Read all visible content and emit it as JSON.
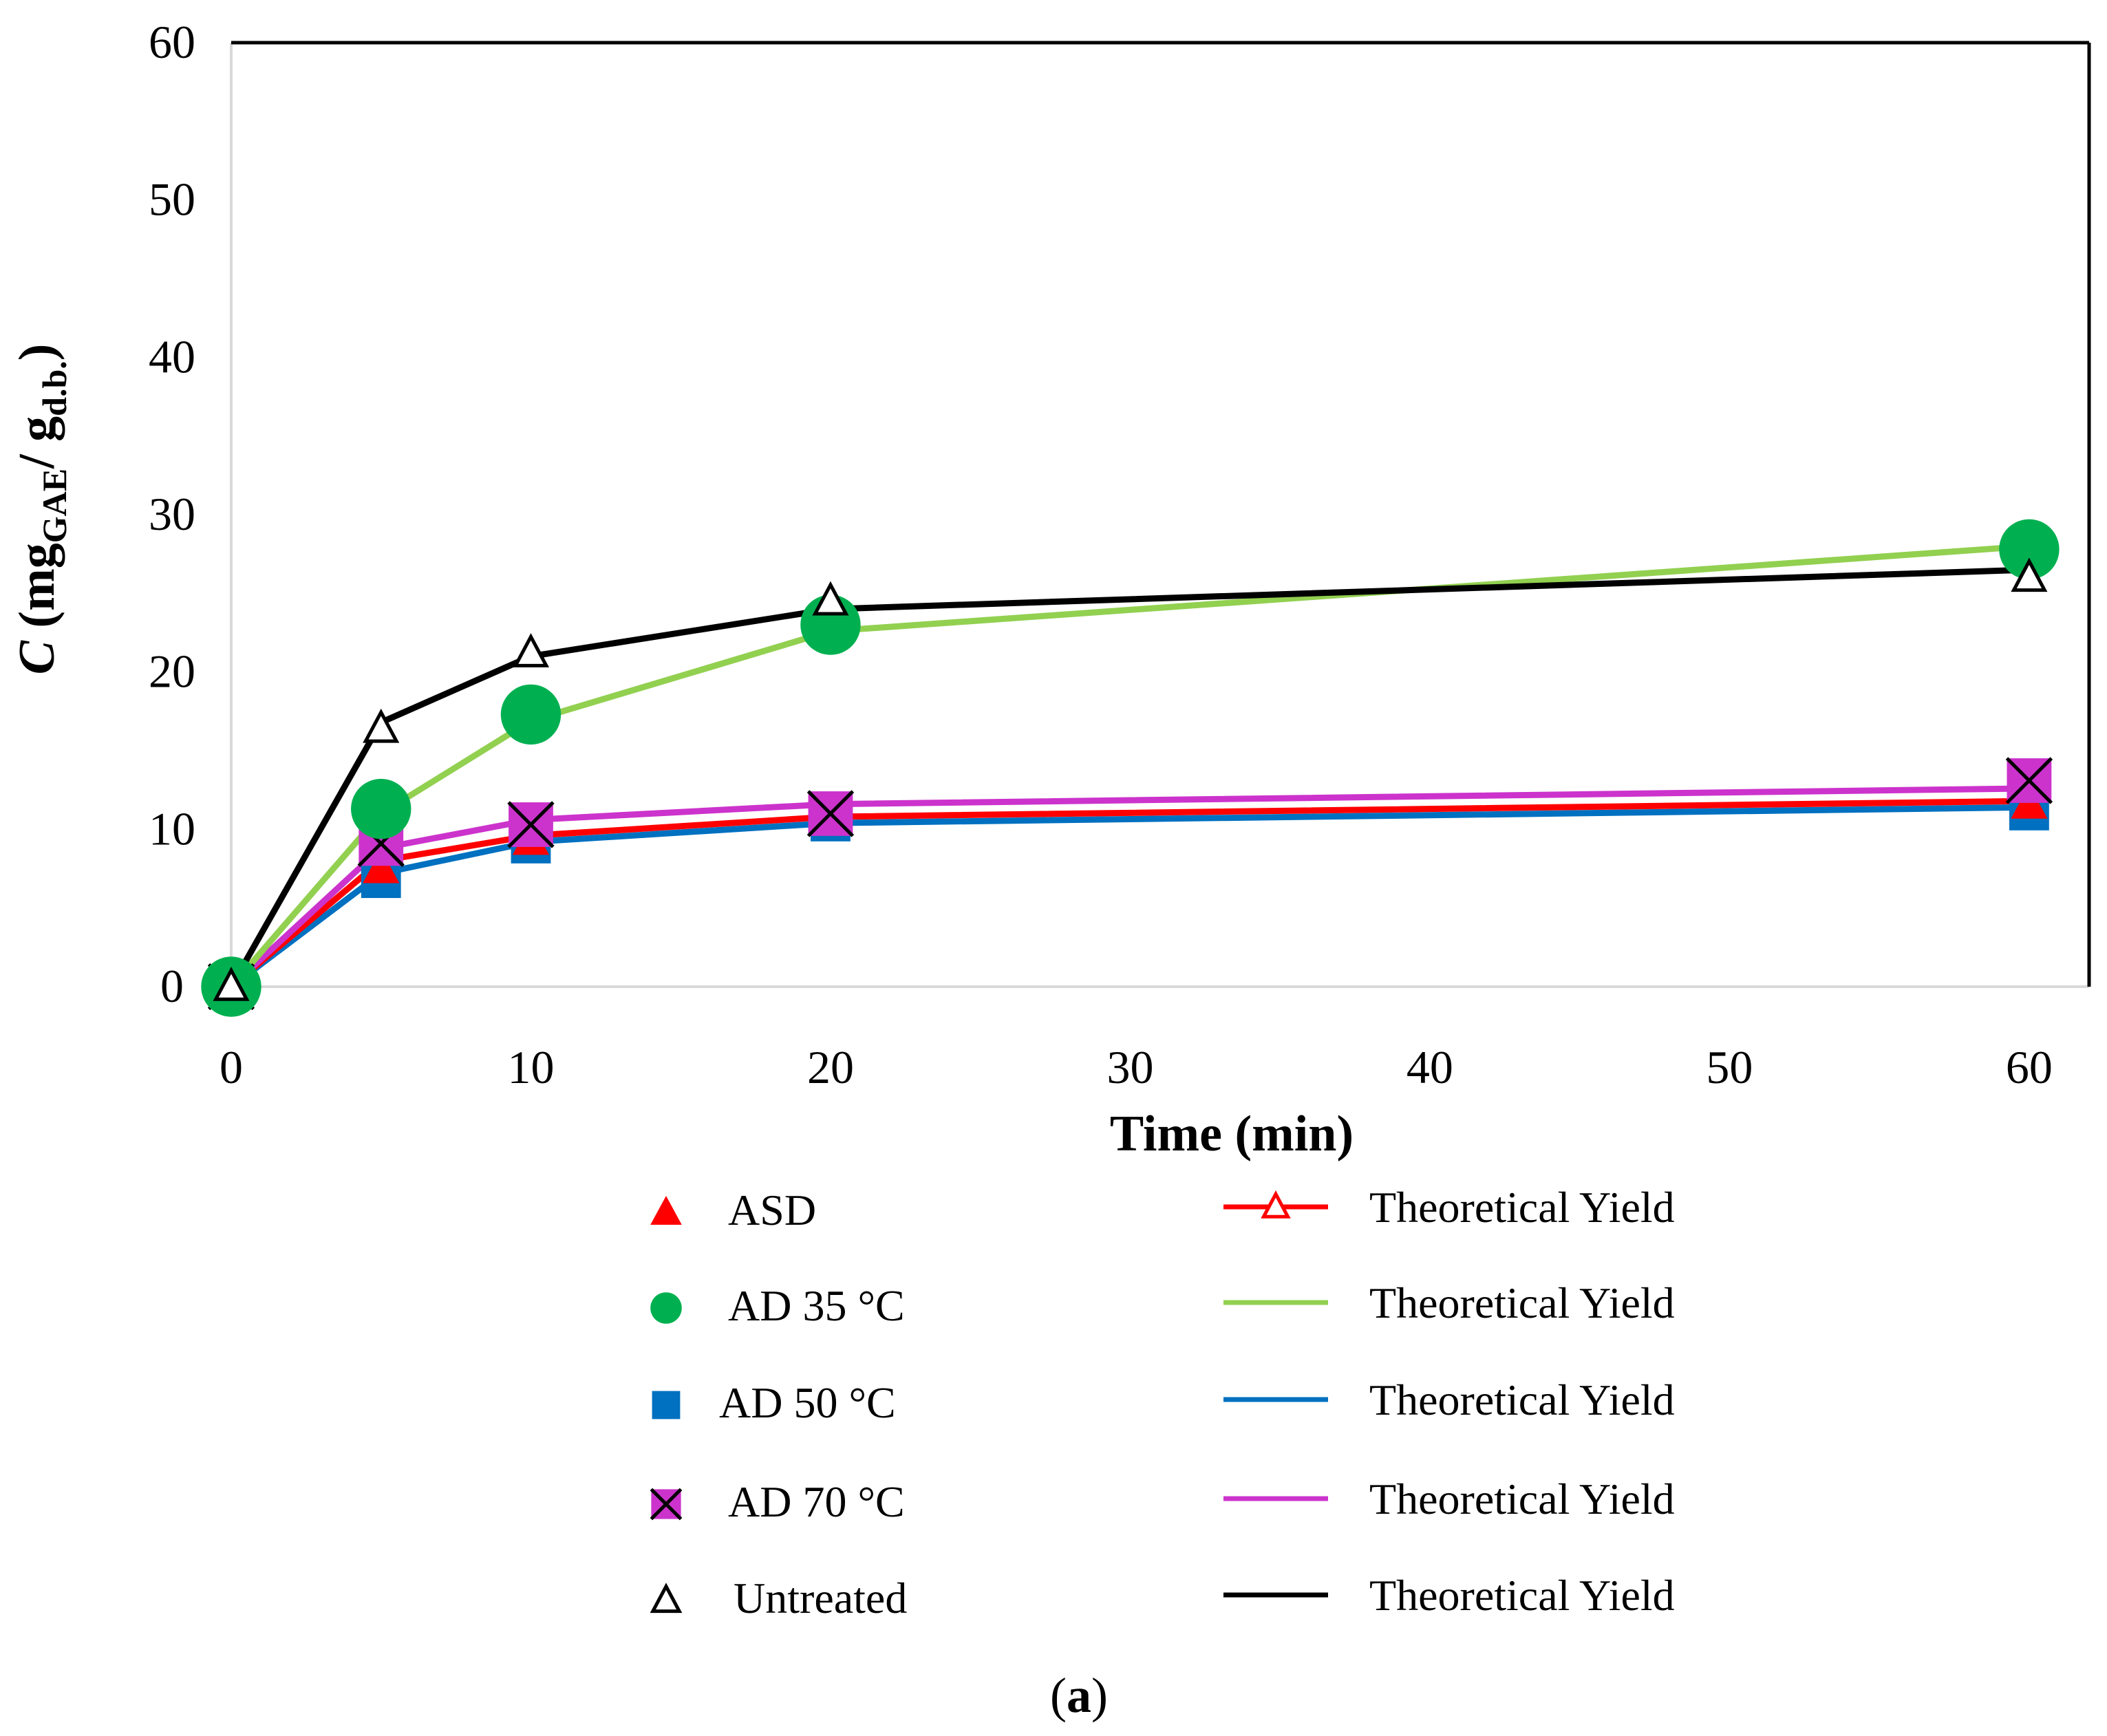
{
  "chart_data": {
    "type": "line",
    "title": "",
    "xlabel": "Time (min)",
    "ylabel": {
      "prefix": "C",
      "open": " (mg",
      "sub1": "GAE",
      "mid": "/ g",
      "sub2": "d.b.",
      "close": ")"
    },
    "xlim": [
      0,
      62
    ],
    "ylim": [
      0,
      60
    ],
    "xticks": [
      0,
      10,
      20,
      30,
      40,
      50,
      60
    ],
    "yticks": [
      0,
      10,
      20,
      30,
      40,
      50,
      60
    ],
    "grid": false,
    "legend_position": "bottom",
    "x": [
      0,
      5,
      10,
      20,
      60
    ],
    "series": [
      {
        "name": "ASD",
        "marker": "triangle",
        "color": "#ff0000",
        "values": [
          0,
          7.5,
          9.3,
          10.6,
          11.6
        ],
        "fit_name": "Theoretical Yield",
        "fit_color": "#ff0000",
        "fit_marker": "triangle-open",
        "fit_values": [
          0,
          8.0,
          9.6,
          10.8,
          11.8
        ]
      },
      {
        "name": "AD 35 °C",
        "marker": "circle",
        "color": "#00b050",
        "values": [
          0,
          11.3,
          17.3,
          23.0,
          27.8
        ],
        "fit_name": "Theoretical Yield",
        "fit_color": "#92d050",
        "fit_marker": "none",
        "fit_values": [
          0,
          11.0,
          16.9,
          22.6,
          28.0
        ]
      },
      {
        "name": "AD 50 °C",
        "marker": "square",
        "color": "#0070c0",
        "values": [
          0,
          6.9,
          9.1,
          10.5,
          11.2
        ],
        "fit_name": "Theoretical Yield",
        "fit_color": "#0070c0",
        "fit_marker": "none",
        "fit_values": [
          0,
          7.2,
          9.2,
          10.4,
          11.4
        ]
      },
      {
        "name": "AD 70 °C",
        "marker": "boxx",
        "color": "#cc33cc",
        "values": [
          0,
          9.1,
          10.3,
          11.0,
          13.1
        ],
        "fit_name": "Theoretical Yield",
        "fit_color": "#cc33cc",
        "fit_marker": "none",
        "fit_values": [
          0,
          8.8,
          10.6,
          11.6,
          12.6
        ]
      },
      {
        "name": "Untreated",
        "marker": "triangle-open",
        "color": "#000000",
        "values": [
          0,
          16.4,
          21.2,
          24.5,
          26.0
        ],
        "fit_name": "Theoretical Yield",
        "fit_color": "#000000",
        "fit_marker": "none",
        "fit_values": [
          0,
          16.8,
          21.0,
          24.0,
          26.5
        ]
      }
    ],
    "caption": {
      "open": "(",
      "letter": "a",
      "close": ")"
    }
  }
}
